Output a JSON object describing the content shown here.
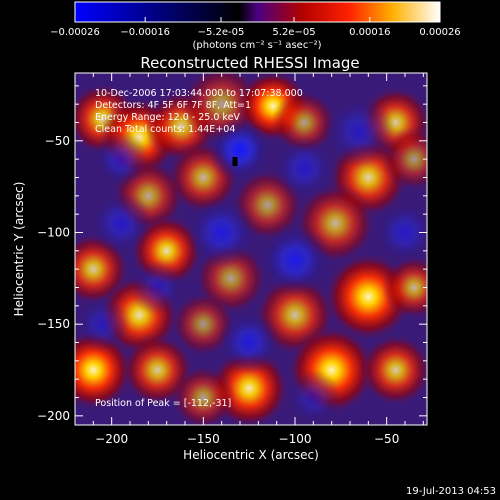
{
  "colorbar": {
    "ticks": [
      "-0.00026",
      "-0.00016",
      "-5.2e-05",
      "5.2e-05",
      "0.00016",
      "0.00026"
    ],
    "unit_label": "(photons cm⁻² s⁻¹ asec⁻²)",
    "range": [
      -0.00026,
      0.00026
    ]
  },
  "footer": {
    "timestamp": "19-Jul-2013 04:53"
  },
  "chart_data": {
    "type": "heatmap",
    "title": "Reconstructed RHESSI Image",
    "xlabel": "Heliocentric X (arcsec)",
    "ylabel": "Heliocentric Y (arcsec)",
    "xlim": [
      -220,
      -28
    ],
    "ylim": [
      -205,
      -13
    ],
    "x_ticks": [
      -200,
      -150,
      -100,
      -50
    ],
    "y_ticks": [
      -50,
      -100,
      -150,
      -200
    ],
    "x_tick_labels": [
      "−200",
      "−150",
      "−100",
      "−50"
    ],
    "y_tick_labels": [
      "−50",
      "−100",
      "−150",
      "−200"
    ],
    "info_lines": [
      "10-Dec-2006 17:03:44.000 to 17:07:38.000",
      "Detectors: 4F 5F 6F 7F 8F, Att=1",
      "Energy Range: 12.0 - 25.0 keV",
      "Clean      Total counts: 1.44E+04"
    ],
    "peak_label": "Position of Peak = [-112,-31]",
    "peak": [
      -112,
      -31
    ],
    "blobs": [
      {
        "x": -205,
        "y": -38,
        "s": 9,
        "a": 0.85
      },
      {
        "x": -185,
        "y": -48,
        "s": 10,
        "a": 0.95
      },
      {
        "x": -162,
        "y": -42,
        "s": 9,
        "a": 0.8
      },
      {
        "x": -140,
        "y": -30,
        "s": 10,
        "a": 0.6
      },
      {
        "x": -112,
        "y": -31,
        "s": 9,
        "a": 1.0
      },
      {
        "x": -95,
        "y": -40,
        "s": 8,
        "a": 0.6
      },
      {
        "x": -45,
        "y": -40,
        "s": 9,
        "a": 0.8
      },
      {
        "x": -60,
        "y": -70,
        "s": 10,
        "a": 0.85
      },
      {
        "x": -35,
        "y": -60,
        "s": 8,
        "a": 0.55
      },
      {
        "x": -150,
        "y": -70,
        "s": 9,
        "a": 0.7
      },
      {
        "x": -180,
        "y": -80,
        "s": 9,
        "a": 0.65
      },
      {
        "x": -115,
        "y": -85,
        "s": 9,
        "a": 0.6
      },
      {
        "x": -78,
        "y": -95,
        "s": 10,
        "a": 0.7
      },
      {
        "x": -170,
        "y": -110,
        "s": 9,
        "a": 0.9
      },
      {
        "x": -210,
        "y": -120,
        "s": 9,
        "a": 0.8
      },
      {
        "x": -135,
        "y": -125,
        "s": 9,
        "a": 0.6
      },
      {
        "x": -185,
        "y": -145,
        "s": 10,
        "a": 0.9
      },
      {
        "x": -100,
        "y": -145,
        "s": 10,
        "a": 0.75
      },
      {
        "x": -60,
        "y": -135,
        "s": 11,
        "a": 1.0
      },
      {
        "x": -35,
        "y": -130,
        "s": 8,
        "a": 0.7
      },
      {
        "x": -150,
        "y": -150,
        "s": 8,
        "a": 0.55
      },
      {
        "x": -210,
        "y": -175,
        "s": 10,
        "a": 1.0
      },
      {
        "x": -175,
        "y": -175,
        "s": 9,
        "a": 0.8
      },
      {
        "x": -125,
        "y": -185,
        "s": 10,
        "a": 0.95
      },
      {
        "x": -80,
        "y": -175,
        "s": 11,
        "a": 1.0
      },
      {
        "x": -45,
        "y": -175,
        "s": 9,
        "a": 0.8
      },
      {
        "x": -150,
        "y": -190,
        "s": 8,
        "a": 0.6
      },
      {
        "x": -65,
        "y": -45,
        "s": -9,
        "a": 0.55
      },
      {
        "x": -130,
        "y": -55,
        "s": -8,
        "a": 1.0
      },
      {
        "x": -195,
        "y": -60,
        "s": -7,
        "a": 0.6
      },
      {
        "x": -95,
        "y": -65,
        "s": -8,
        "a": 0.6
      },
      {
        "x": -140,
        "y": -100,
        "s": -9,
        "a": 0.75
      },
      {
        "x": -195,
        "y": -95,
        "s": -8,
        "a": 0.6
      },
      {
        "x": -40,
        "y": -100,
        "s": -8,
        "a": 0.6
      },
      {
        "x": -100,
        "y": -115,
        "s": -9,
        "a": 0.85
      },
      {
        "x": -175,
        "y": -130,
        "s": -7,
        "a": 0.5
      },
      {
        "x": -125,
        "y": -160,
        "s": -8,
        "a": 0.75
      },
      {
        "x": -205,
        "y": -150,
        "s": -7,
        "a": 0.5
      },
      {
        "x": -90,
        "y": -190,
        "s": -7,
        "a": 0.5
      }
    ]
  }
}
